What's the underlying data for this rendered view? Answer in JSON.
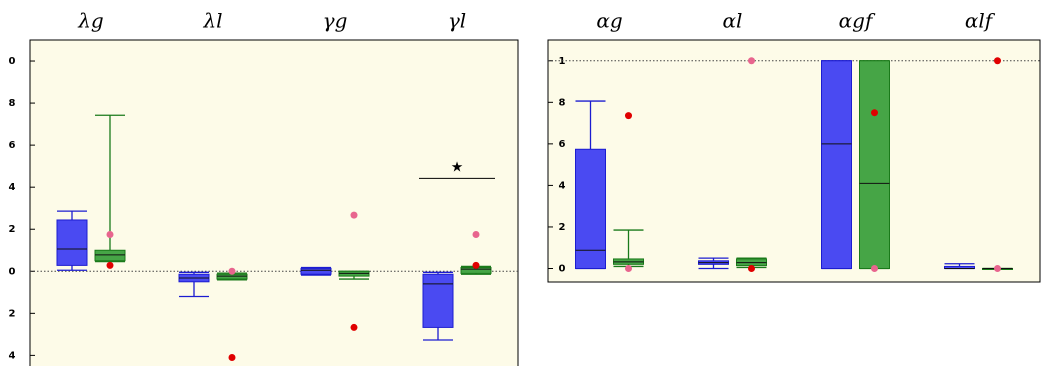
{
  "chart_data": [
    {
      "type": "box",
      "categories": [
        "λg",
        "λl",
        "γg",
        "γl"
      ],
      "ylim": [
        -4.6,
        11
      ],
      "yticks": [
        {
          "value": 10,
          "label": "0"
        },
        8,
        6,
        4,
        2,
        0,
        {
          "value": -2,
          "label": "2"
        },
        {
          "value": -4,
          "label": "4"
        }
      ],
      "reference_line": 0,
      "series": [
        {
          "color": "#4a4af2",
          "edge": "#1c1cd0",
          "boxes": [
            [
              0.05,
              0.28,
              1.06,
              2.44,
              2.86
            ],
            [
              -1.2,
              -0.5,
              -0.32,
              -0.14,
              -0.05
            ],
            [
              -0.18,
              -0.14,
              0.05,
              0.14,
              0.18
            ],
            [
              -3.27,
              -2.67,
              -0.6,
              -0.14,
              -0.05
            ]
          ]
        },
        {
          "color": "#46a546",
          "edge": "#1a7a1a",
          "boxes": [
            [
              0.46,
              0.5,
              0.78,
              1.0,
              7.42
            ],
            [
              -0.41,
              -0.37,
              -0.23,
              -0.14,
              -0.09
            ],
            [
              -0.37,
              -0.23,
              -0.1,
              0,
              0
            ],
            [
              -0.14,
              -0.1,
              0.1,
              0.18,
              0.23
            ]
          ]
        }
      ],
      "points": [
        {
          "color": "#e8658e",
          "values": [
            1.75,
            0,
            2.67,
            1.75
          ]
        },
        {
          "color": "#e00000",
          "values": [
            0.28,
            -4.1,
            -2.67,
            0.28
          ]
        }
      ],
      "annotations": [
        {
          "text": "★",
          "y": 4.42,
          "category": "γl"
        }
      ]
    },
    {
      "type": "box",
      "categories": [
        "αg",
        "αl",
        "αgf",
        "αlf"
      ],
      "ylim": [
        -0.065,
        1.1
      ],
      "yticks": [
        {
          "value": 1.0,
          "label": "1"
        },
        {
          "value": 0.8,
          "label": "8"
        },
        {
          "value": 0.6,
          "label": "6"
        },
        {
          "value": 0.4,
          "label": "4"
        },
        {
          "value": 0.2,
          "label": "2"
        },
        0
      ],
      "reference_line": 1,
      "series": [
        {
          "color": "#4a4af2",
          "edge": "#1c1cd0",
          "boxes": [
            [
              0,
              0,
              0.088,
              0.574,
              0.806
            ],
            [
              0,
              0.02,
              0.028,
              0.037,
              0.05
            ],
            [
              0,
              0,
              0.6,
              1,
              1
            ],
            [
              0,
              0,
              0,
              0.01,
              0.023
            ]
          ]
        },
        {
          "color": "#46a546",
          "edge": "#1a7a1a",
          "boxes": [
            [
              0.01,
              0.02,
              0.032,
              0.046,
              0.185
            ],
            [
              0.005,
              0.014,
              0.028,
              0.046,
              0.05
            ],
            [
              0,
              0,
              0.41,
              1,
              1
            ],
            [
              0,
              0,
              0,
              0,
              0
            ]
          ]
        }
      ],
      "points": [
        {
          "color": "#e8658e",
          "values": [
            0,
            1.0,
            0,
            0
          ]
        },
        {
          "color": "#e00000",
          "values": [
            0.736,
            0,
            0.75,
            1.0
          ]
        }
      ]
    }
  ]
}
